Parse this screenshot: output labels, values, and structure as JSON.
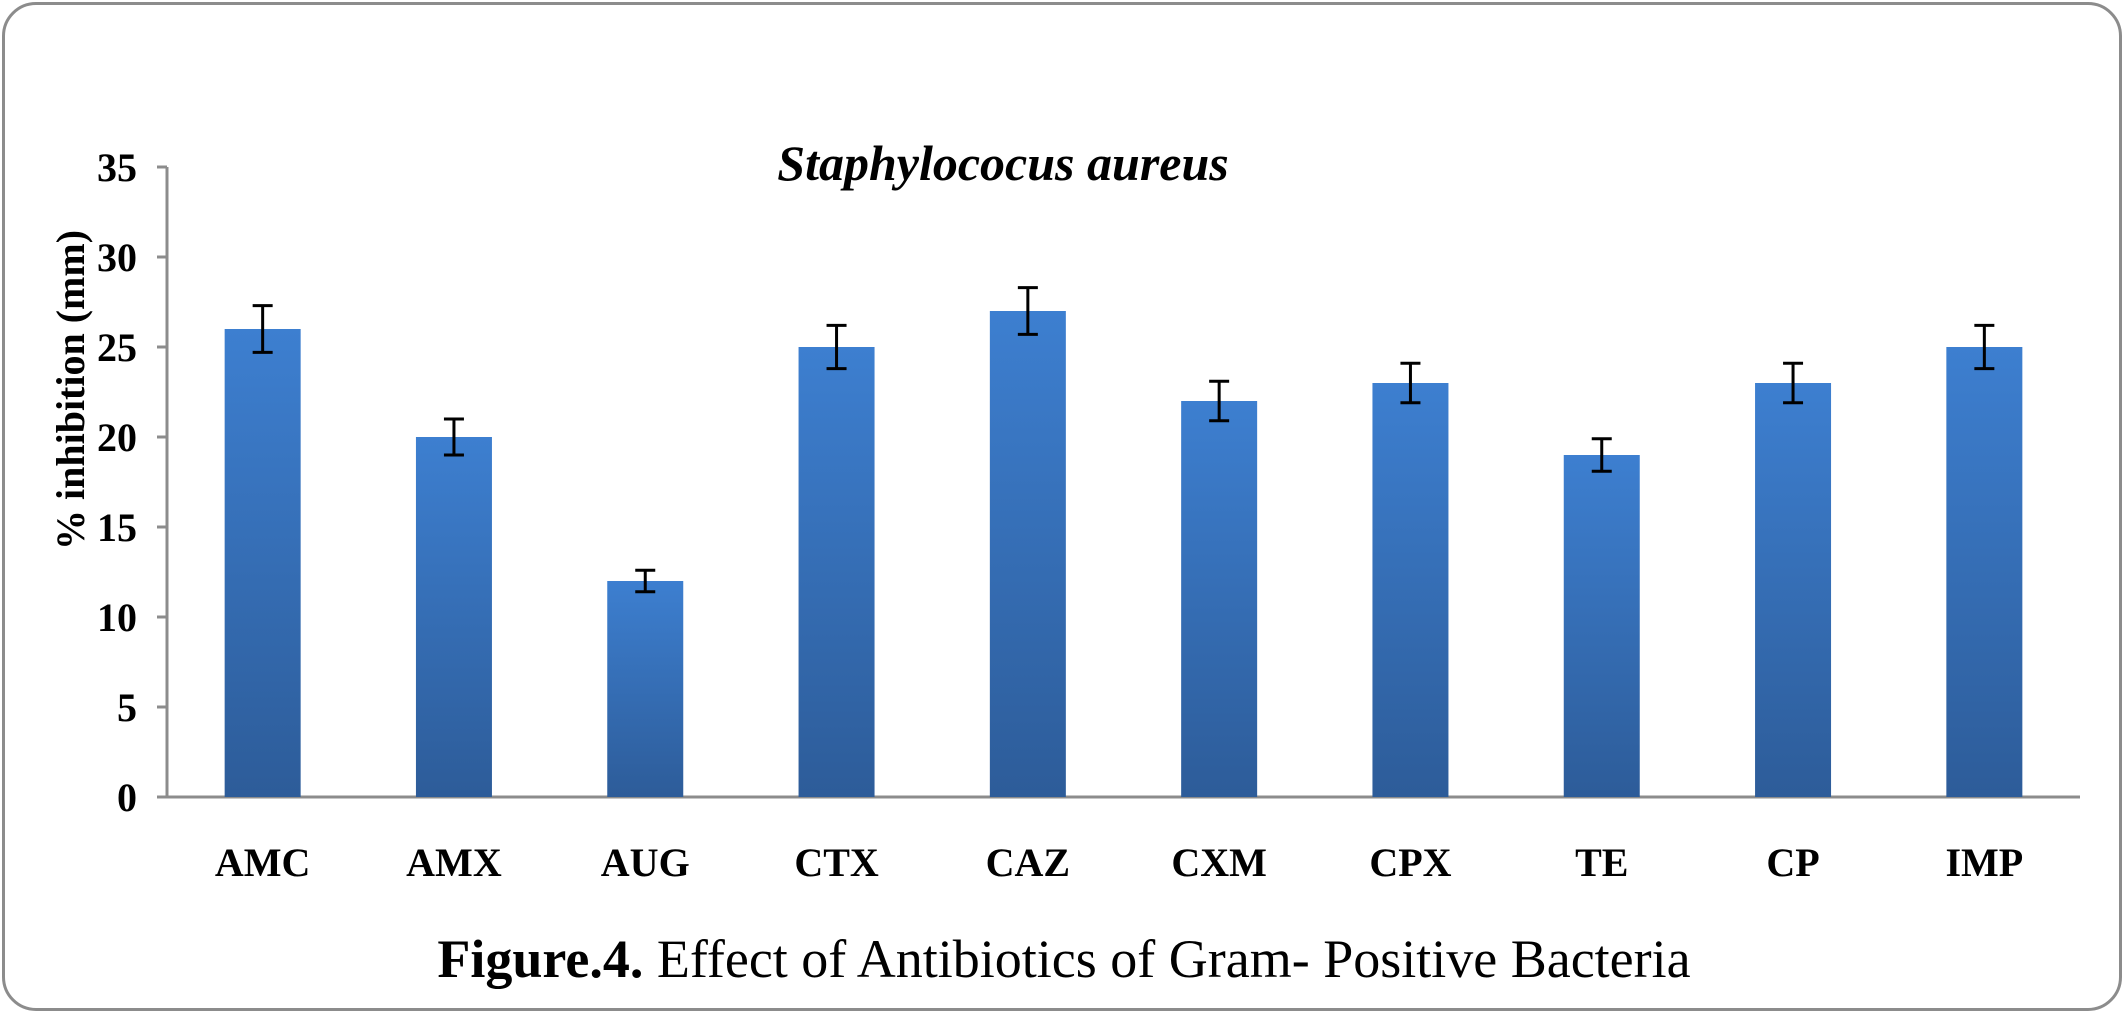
{
  "chart_data": {
    "type": "bar",
    "title": "Staphylococus aureus",
    "ylabel": "% inhibition (mm)",
    "xlabel": "",
    "categories": [
      "AMC",
      "AMX",
      "AUG",
      "CTX",
      "CAZ",
      "CXM",
      "CPX",
      "TE",
      "CP",
      "IMP"
    ],
    "values": [
      26,
      20,
      12,
      25,
      27,
      22,
      23,
      19,
      23,
      25
    ],
    "error": [
      1.3,
      1.0,
      0.6,
      1.2,
      1.3,
      1.1,
      1.1,
      0.9,
      1.1,
      1.2
    ],
    "ylim": [
      0,
      35
    ],
    "yticks": [
      "0",
      "5",
      "10",
      "15",
      "20",
      "25",
      "30",
      "35"
    ],
    "grid": false,
    "bar_color": "#3a78c4"
  },
  "caption": {
    "prefix": "Figure.4.",
    "text": " Effect of Antibiotics of Gram- Positive Bacteria"
  }
}
